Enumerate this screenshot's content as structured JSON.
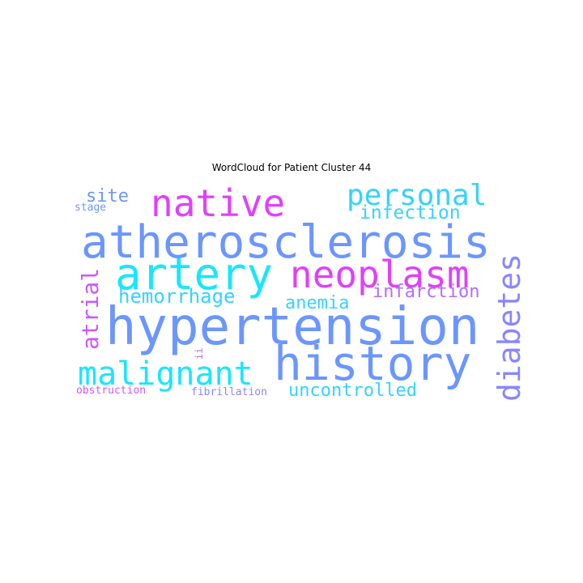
{
  "title": "WordCloud for Patient Cluster 44",
  "colors": {
    "magenta": "#e040fb",
    "cyan": "#18e6ff",
    "light_cyan": "#34d3ff",
    "blue": "#6b96ff",
    "periwinkle": "#8a86ff",
    "violet": "#b46cff",
    "pink_violet": "#cc55ff"
  },
  "words": [
    {
      "text": "atherosclerosis",
      "color": "blue",
      "rotated": false
    },
    {
      "text": "hypertension",
      "color": "blue",
      "rotated": false
    },
    {
      "text": "history",
      "color": "blue",
      "rotated": false
    },
    {
      "text": "artery",
      "color": "cyan",
      "rotated": false
    },
    {
      "text": "neoplasm",
      "color": "magenta",
      "rotated": false
    },
    {
      "text": "native",
      "color": "magenta",
      "rotated": false
    },
    {
      "text": "malignant",
      "color": "cyan",
      "rotated": false
    },
    {
      "text": "personal",
      "color": "light_cyan",
      "rotated": false
    },
    {
      "text": "diabetes",
      "color": "periwinkle",
      "rotated": true
    },
    {
      "text": "atrial",
      "color": "pink_violet",
      "rotated": true
    },
    {
      "text": "hemorrhage",
      "color": "light_cyan",
      "rotated": false
    },
    {
      "text": "infection",
      "color": "light_cyan",
      "rotated": false
    },
    {
      "text": "infarction",
      "color": "violet",
      "rotated": false
    },
    {
      "text": "anemia",
      "color": "light_cyan",
      "rotated": false
    },
    {
      "text": "uncontrolled",
      "color": "light_cyan",
      "rotated": false
    },
    {
      "text": "site",
      "color": "blue",
      "rotated": false
    },
    {
      "text": "stage",
      "color": "blue",
      "rotated": false
    },
    {
      "text": "obstruction",
      "color": "pink_violet",
      "rotated": false
    },
    {
      "text": "fibrillation",
      "color": "periwinkle",
      "rotated": false
    },
    {
      "text": "ii",
      "color": "violet",
      "rotated": true
    }
  ]
}
